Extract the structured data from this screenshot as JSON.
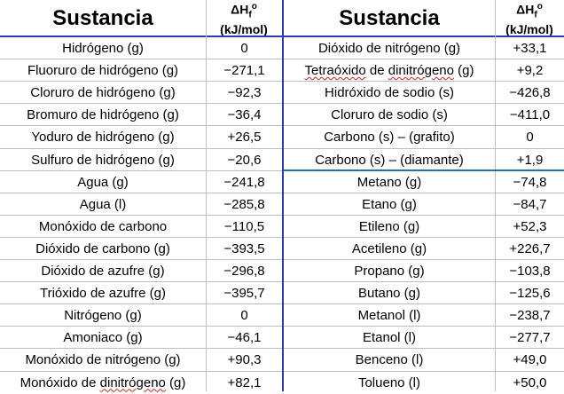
{
  "headers": {
    "left_name": "Sustancia",
    "left_unit": "(kJ/mol)",
    "right_name": "Sustancia",
    "right_unit": "(kJ/mol)"
  },
  "left": [
    {
      "name": "Hidrógeno (g)",
      "value": "0"
    },
    {
      "name": "Fluoruro de hidrógeno (g)",
      "value": "−271,1"
    },
    {
      "name": "Cloruro de hidrógeno (g)",
      "value": "−92,3"
    },
    {
      "name": "Bromuro de hidrógeno (g)",
      "value": "−36,4"
    },
    {
      "name": "Yoduro de hidrógeno (g)",
      "value": "+26,5"
    },
    {
      "name": "Sulfuro de hidrógeno (g)",
      "value": "−20,6"
    },
    {
      "name": "Agua (g)",
      "value": "−241,8"
    },
    {
      "name": "Agua (l)",
      "value": "−285,8"
    },
    {
      "name": "Monóxido de carbono",
      "value": "−110,5"
    },
    {
      "name": "Dióxido de carbono (g)",
      "value": "−393,5"
    },
    {
      "name": "Dióxido de azufre (g)",
      "value": "−296,8"
    },
    {
      "name": "Trióxido de azufre (g)",
      "value": "−395,7"
    },
    {
      "name": "Nitrógeno (g)",
      "value": "0"
    },
    {
      "name": "Amoniaco (g)",
      "value": "−46,1"
    },
    {
      "name": "Monóxido de nitrógeno (g)",
      "value": "+90,3"
    },
    {
      "name": "Monóxido de dinitrógeno (g)",
      "value": "+82,1"
    }
  ],
  "right": [
    {
      "name": "Dióxido de nitrógeno (g)",
      "value": "+33,1"
    },
    {
      "name": "Tetraóxido de dinitrógeno (g)",
      "value": "+9,2"
    },
    {
      "name": "Hidróxido de sodio (s)",
      "value": "−426,8"
    },
    {
      "name": "Cloruro de sodio (s)",
      "value": "−411,0"
    },
    {
      "name": "Carbono (s) – (grafito)",
      "value": "0"
    },
    {
      "name": "Carbono (s) – (diamante)",
      "value": "+1,9"
    },
    {
      "name": "Metano (g)",
      "value": "−74,8"
    },
    {
      "name": "Etano (g)",
      "value": "−84,7"
    },
    {
      "name": "Etileno (g)",
      "value": "+52,3"
    },
    {
      "name": "Acetileno (g)",
      "value": "+226,7"
    },
    {
      "name": "Propano (g)",
      "value": "−103,8"
    },
    {
      "name": "Butano (g)",
      "value": "−125,6"
    },
    {
      "name": "Metanol (l)",
      "value": "−238,7"
    },
    {
      "name": "Etanol (l)",
      "value": "−277,7"
    },
    {
      "name": "Benceno (l)",
      "value": "+49,0"
    },
    {
      "name": "Tolueno (l)",
      "value": "+50,0"
    }
  ]
}
